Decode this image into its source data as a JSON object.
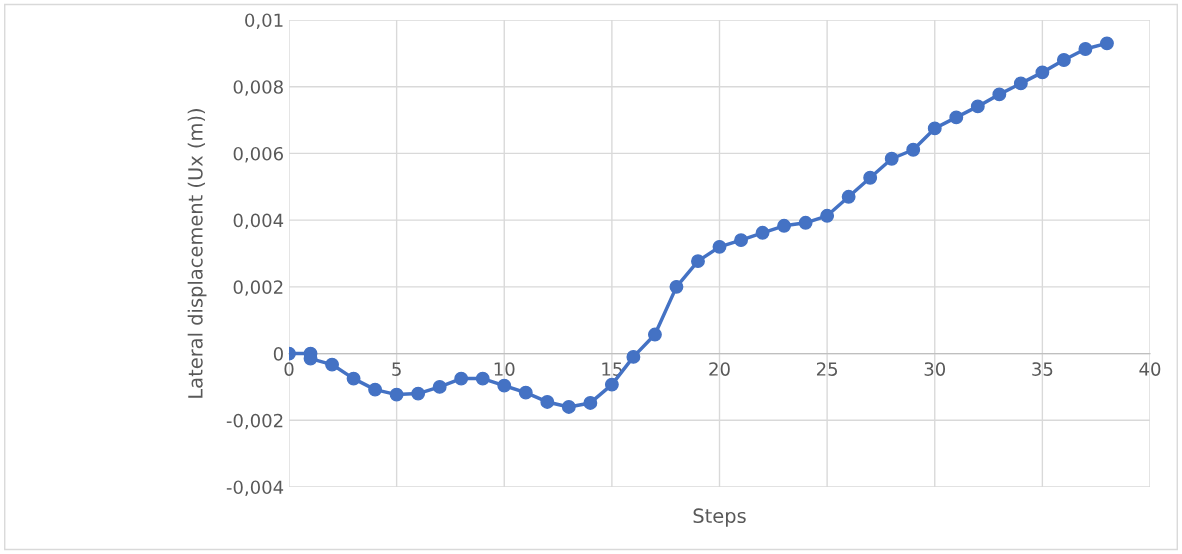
{
  "chart_data": {
    "type": "line",
    "xlabel": "Steps",
    "ylabel": "Lateral displacement (Ux (m))",
    "x": [
      0,
      1,
      1,
      2,
      3,
      4,
      5,
      6,
      7,
      8,
      9,
      10,
      11,
      12,
      13,
      14,
      15,
      16,
      17,
      18,
      19,
      20,
      21,
      22,
      23,
      24,
      25,
      26,
      27,
      28,
      29,
      30,
      31,
      32,
      33,
      34,
      35,
      36,
      37,
      38
    ],
    "series": [
      {
        "color": "#4472c4",
        "values": [
          0,
          0,
          -0.00015,
          -0.00033,
          -0.00075,
          -0.00108,
          -0.00123,
          -0.0012,
          -0.001,
          -0.00075,
          -0.00075,
          -0.00096,
          -0.00117,
          -0.00145,
          -0.0016,
          -0.00148,
          -0.00093,
          -0.0001,
          0.00057,
          0.002,
          0.00277,
          0.0032,
          0.0034,
          0.00362,
          0.00383,
          0.00392,
          0.00413,
          0.0047,
          0.00527,
          0.00584,
          0.00611,
          0.00675,
          0.00708,
          0.00741,
          0.00777,
          0.0081,
          0.00843,
          0.0088,
          0.00913,
          0.0093
        ]
      }
    ],
    "xlim": [
      0,
      40
    ],
    "xticks": [
      0,
      5,
      10,
      15,
      20,
      25,
      30,
      35,
      40
    ],
    "ylim": [
      -0.004,
      0.01
    ],
    "yticks": [
      {
        "value": -0.004,
        "label": "-0,004"
      },
      {
        "value": -0.002,
        "label": "-0,002"
      },
      {
        "value": 0,
        "label": "0"
      },
      {
        "value": 0.002,
        "label": "0,002"
      },
      {
        "value": 0.004,
        "label": "0,004"
      },
      {
        "value": 0.006,
        "label": "0,006"
      },
      {
        "value": 0.008,
        "label": "0,008"
      },
      {
        "value": 0.01,
        "label": "0,01"
      }
    ],
    "grid": true,
    "marker": "circle",
    "line_style": "solid"
  }
}
